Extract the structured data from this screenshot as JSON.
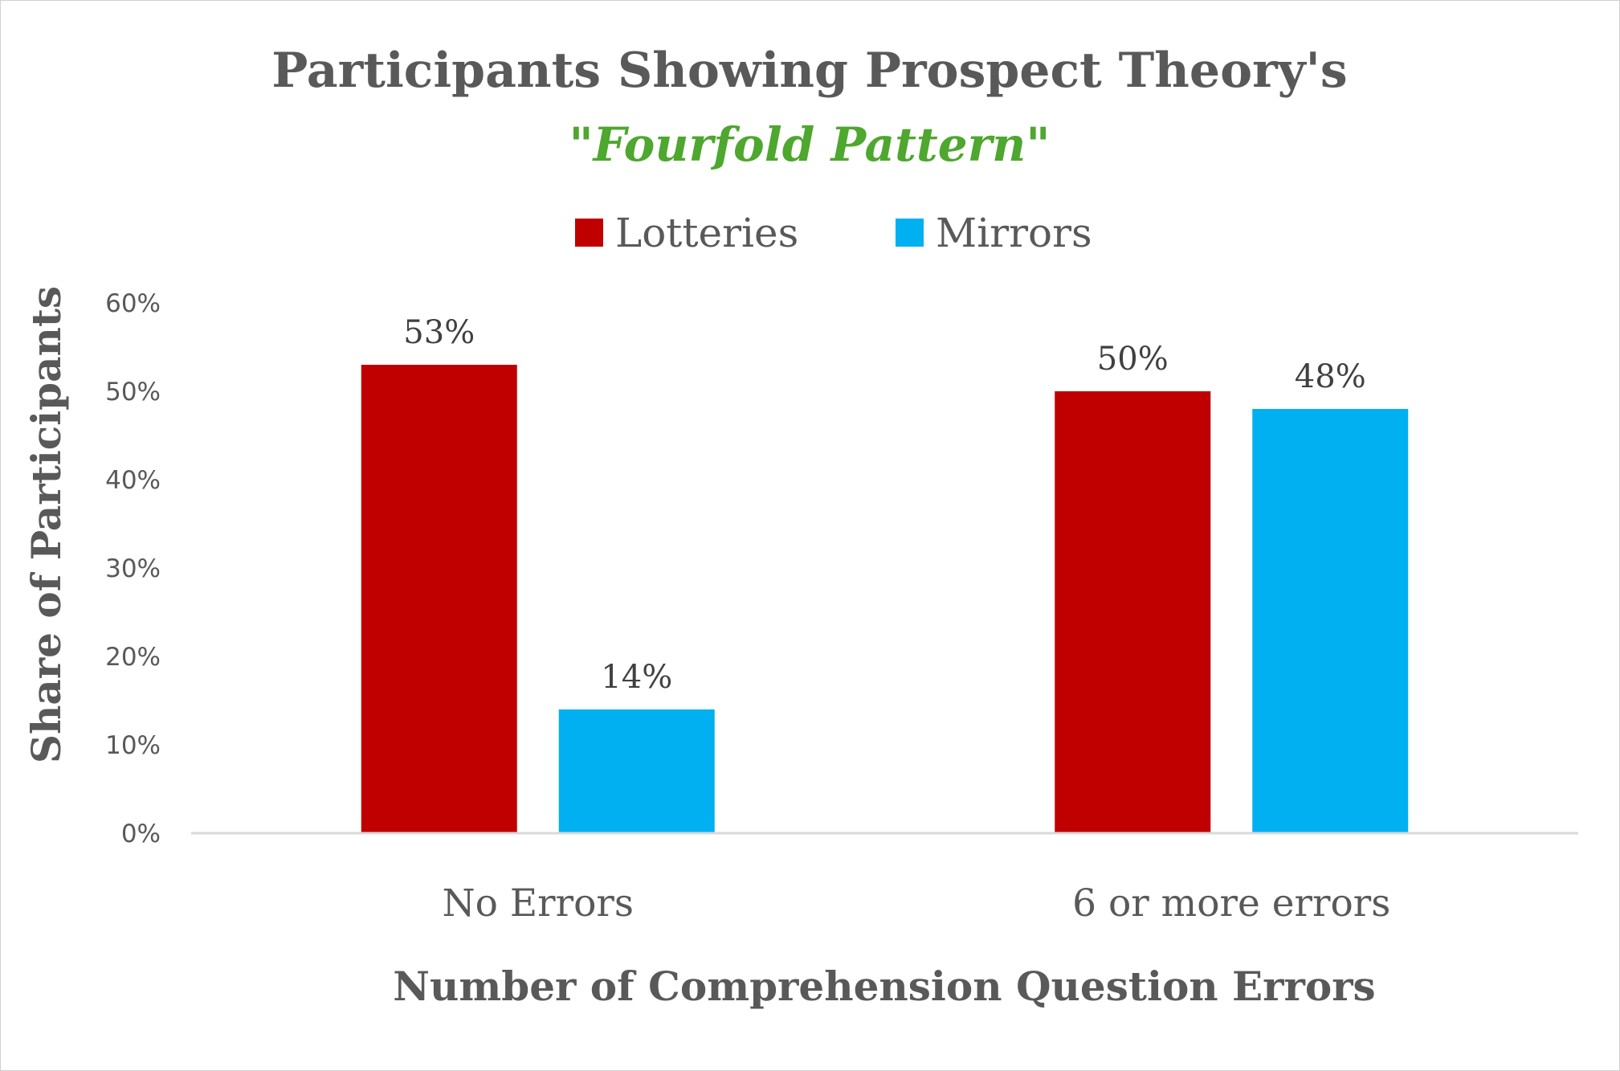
{
  "chart_data": {
    "type": "bar",
    "title": "Participants Showing Prospect Theory's",
    "subtitle": "\"Fourfold Pattern\"",
    "xlabel": "Number of Comprehension Question Errors",
    "ylabel": "Share of Participants",
    "categories": [
      "No Errors",
      "6 or more errors"
    ],
    "series": [
      {
        "name": "Lotteries",
        "values": [
          53,
          50
        ],
        "labels": [
          "53%",
          "50%"
        ],
        "color": "#c00000"
      },
      {
        "name": "Mirrors",
        "values": [
          14,
          48
        ],
        "labels": [
          "14%",
          "48%"
        ],
        "color": "#00b0f0"
      }
    ],
    "ylim": [
      0,
      60
    ],
    "yticks": [
      "0%",
      "10%",
      "20%",
      "30%",
      "40%",
      "50%",
      "60%"
    ],
    "grid": false,
    "legend_position": "top",
    "colors": {
      "title": "#595959",
      "subtitle": "#4ea72e",
      "axis_line": "#d9d9d9"
    }
  }
}
